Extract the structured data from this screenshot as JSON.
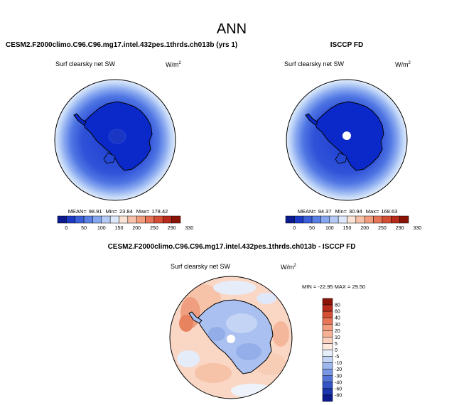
{
  "page_title": "ANN",
  "colors": {
    "ocean_deep": "#1d3ccf",
    "ocean_mid": "#3b61dc",
    "ocean_light": "#6f92ea",
    "ocean_pale": "#a6c3f4",
    "ocean_edge": "#d4e4fb",
    "land_blue": "#0b29c9",
    "diff_pos": "#f6b79a",
    "diff_pos2": "#fbd6c2",
    "diff_neg": "#aec4f0",
    "diff_neg2": "#8fa9e6"
  },
  "chart_data": [
    {
      "type": "heatmap",
      "id": "model",
      "title": "CESM2.F2000climo.C96.C96.mg17.intel.432pes.1thrds.ch013b (yrs 1)",
      "variable": "Surf clearsky net SW",
      "units": "W/m",
      "units_sup": "2",
      "stats": {
        "mean": "98.91",
        "min": "23.84",
        "max": "178.42"
      },
      "stats_labels": {
        "mean": "MEAN=",
        "min": "Min=",
        "max": "Max="
      },
      "colorbar": {
        "labels": [
          "0",
          "50",
          "100",
          "150",
          "200",
          "250",
          "290",
          "330"
        ],
        "colors": [
          "#0b1a8f",
          "#1b39c4",
          "#3b5fd9",
          "#5a80e6",
          "#86a6ef",
          "#b5cbf6",
          "#dde9fb",
          "#fbe3d6",
          "#f7c2a9",
          "#f29d7e",
          "#e87458",
          "#d44d35",
          "#b82a1b",
          "#8a1408"
        ]
      }
    },
    {
      "type": "heatmap",
      "id": "obs",
      "title": "ISCCP FD",
      "variable": "Surf clearsky net SW",
      "units": "W/m",
      "units_sup": "2",
      "stats": {
        "mean": "94.37",
        "min": "30.94",
        "max": "168.63"
      },
      "stats_labels": {
        "mean": "MEAN=",
        "min": "Min=",
        "max": "Max="
      },
      "colorbar": {
        "labels": [
          "0",
          "50",
          "100",
          "150",
          "200",
          "250",
          "290",
          "330"
        ],
        "colors": [
          "#0b1a8f",
          "#1b39c4",
          "#3b5fd9",
          "#5a80e6",
          "#86a6ef",
          "#b5cbf6",
          "#dde9fb",
          "#fbe3d6",
          "#f7c2a9",
          "#f29d7e",
          "#e87458",
          "#d44d35",
          "#b82a1b",
          "#8a1408"
        ]
      }
    },
    {
      "type": "heatmap",
      "id": "diff",
      "title": "CESM2.F2000climo.C96.C96.mg17.intel.432pes.1thrds.ch013b - ISCCP FD",
      "variable": "Surf clearsky net SW",
      "units": "W/m",
      "units_sup": "2",
      "minmax_text": "MIN = -22.95  MAX =  29.50",
      "colorbar": {
        "labels": [
          "80",
          "60",
          "40",
          "30",
          "20",
          "10",
          "5",
          "0",
          "-5",
          "-10",
          "-20",
          "-30",
          "-40",
          "-60",
          "-80"
        ],
        "colors": [
          "#8a1408",
          "#b82a1b",
          "#d44d35",
          "#e87458",
          "#f29d7e",
          "#f7b196",
          "#fbd0bd",
          "#fde9de",
          "#e6eefb",
          "#c3d4f6",
          "#9db6ee",
          "#7896e4",
          "#5474d7",
          "#3453c6",
          "#1a35ad",
          "#0b1a8f"
        ]
      }
    }
  ]
}
